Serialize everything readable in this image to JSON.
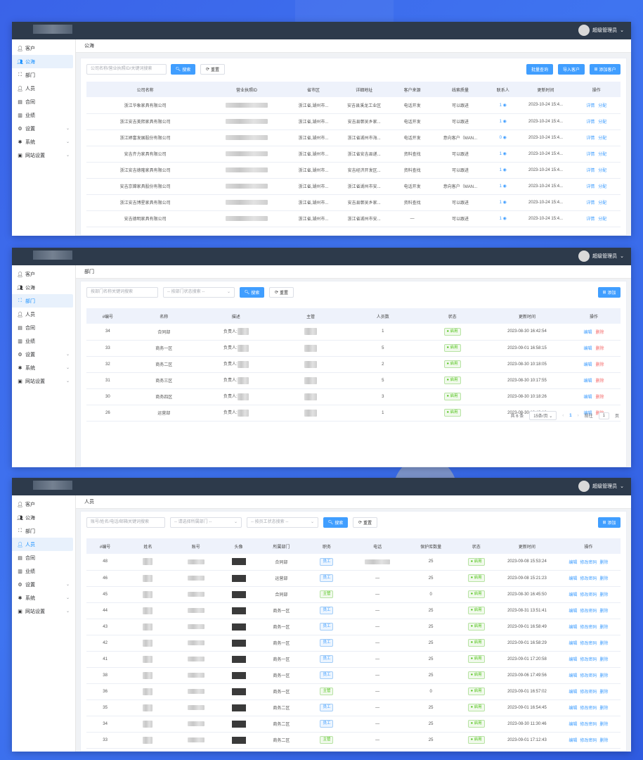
{
  "user": {
    "name": "超级管理员",
    "chevron": "chevron-down-icon"
  },
  "nav": [
    {
      "label": "客户",
      "icon": "user-icon",
      "has_children": false
    },
    {
      "label": "公海",
      "icon": "users-icon",
      "has_children": false
    },
    {
      "label": "部门",
      "icon": "org-icon",
      "has_children": false
    },
    {
      "label": "人员",
      "icon": "user-icon",
      "has_children": false
    },
    {
      "label": "合同",
      "icon": "document-icon",
      "has_children": false
    },
    {
      "label": "业绩",
      "icon": "chart-icon",
      "has_children": false
    },
    {
      "label": "设置",
      "icon": "gear-icon",
      "has_children": true
    },
    {
      "label": "系统",
      "icon": "system-icon",
      "has_children": true
    },
    {
      "label": "网站设置",
      "icon": "website-icon",
      "has_children": true
    }
  ],
  "colors": {
    "topbar": "#2d3a4b",
    "primary": "#409eff",
    "success": "#52c41a",
    "danger": "#f56c6c",
    "header_row": "#eef2fb"
  },
  "screen1": {
    "breadcrumb": "公海",
    "active_nav": "公海",
    "search_placeholder": "公司名称/营业执照ID/关键词搜索",
    "search_label": "搜索",
    "reset_label": "重置",
    "buttons": [
      "批量查询",
      "导入客户",
      "添加客户"
    ],
    "columns": [
      "公司名称",
      "营业执照ID",
      "省市区",
      "详细地址",
      "客户来源",
      "线索质量",
      "联系人",
      "更新时间",
      "操作"
    ],
    "rows": [
      {
        "company": "浙江华象家具有限公司",
        "region": "浙江省,湖州市...",
        "address": "安吉县溪龙工业区",
        "source": "电话开发",
        "quality": "可以跟进",
        "contacts": "1",
        "updated": "2023-10-24 15:4..."
      },
      {
        "company": "浙江安吉美熙家具有限公司",
        "region": "浙江省,湖州市...",
        "address": "安吉县鄣吴乡家...",
        "source": "电话开发",
        "quality": "可以跟进",
        "contacts": "1",
        "updated": "2023-10-24 15:4..."
      },
      {
        "company": "浙江婷富发展股份有限公司",
        "region": "浙江省,湖州市...",
        "address": "浙江省湖州市海...",
        "source": "电话开发",
        "quality": "意向客户（MAN...",
        "contacts": "0",
        "updated": "2023-10-24 15:4..."
      },
      {
        "company": "安吉齐力家具有限公司",
        "region": "浙江省,湖州市...",
        "address": "浙江省安吉县递...",
        "source": "资料查找",
        "quality": "可以跟进",
        "contacts": "1",
        "updated": "2023-10-24 15:4..."
      },
      {
        "company": "浙江安吉德隆家具有限公司",
        "region": "浙江省,湖州市...",
        "address": "安吉经济开发区...",
        "source": "资料查找",
        "quality": "可以跟进",
        "contacts": "1",
        "updated": "2023-10-24 15:4..."
      },
      {
        "company": "安吉京嫦家具股份有限公司",
        "region": "浙江省,湖州市...",
        "address": "浙江省湖州市安...",
        "source": "电话开发",
        "quality": "意向客户（MAN...",
        "contacts": "1",
        "updated": "2023-10-24 15:4..."
      },
      {
        "company": "浙江安吉博星家具有限公司",
        "region": "浙江省,湖州市...",
        "address": "安吉县鄣吴乡家...",
        "source": "资料查找",
        "quality": "可以跟进",
        "contacts": "1",
        "updated": "2023-10-24 15:4..."
      },
      {
        "company": "安吉德明家具有限公司",
        "region": "浙江省,湖州市...",
        "address": "浙江省湖州市安...",
        "source": "—",
        "quality": "可以跟进",
        "contacts": "1",
        "updated": "2023-10-24 15:4..."
      }
    ],
    "actions": [
      "详情",
      "分配"
    ]
  },
  "screen2": {
    "breadcrumb": "部门",
    "active_nav": "部门",
    "search_placeholder": "按部门名称关键词搜索",
    "status_placeholder": "-- 按部门状态搜索 --",
    "search_label": "搜索",
    "reset_label": "重置",
    "add_label": "添加",
    "columns": [
      "#编号",
      "名称",
      "描述",
      "主管",
      "人员数",
      "状态",
      "更新时间",
      "操作"
    ],
    "desc_prefix": "负责人:",
    "rows": [
      {
        "id": "34",
        "name": "合同部",
        "count": "1",
        "status": "启用",
        "updated": "2023-08-30 16:42:54"
      },
      {
        "id": "33",
        "name": "商务一区",
        "count": "5",
        "status": "启用",
        "updated": "2023-09-01 16:58:15"
      },
      {
        "id": "32",
        "name": "商务二区",
        "count": "2",
        "status": "启用",
        "updated": "2023-08-30 10:18:05"
      },
      {
        "id": "31",
        "name": "商务三区",
        "count": "5",
        "status": "启用",
        "updated": "2023-08-30 10:17:55"
      },
      {
        "id": "30",
        "name": "商务四区",
        "count": "3",
        "status": "启用",
        "updated": "2023-08-30 10:18:26"
      },
      {
        "id": "26",
        "name": "运营部",
        "count": "1",
        "status": "启用",
        "updated": "2023-08-30 16:43:18"
      }
    ],
    "actions": [
      "编辑",
      "删除"
    ],
    "pager": {
      "total": "共 6 条",
      "size": "15条/页",
      "page": "1",
      "goto": "前往",
      "goto_value": "1",
      "suffix": "页"
    }
  },
  "screen3": {
    "breadcrumb": "人员",
    "active_nav": "人员",
    "search_placeholder": "账号/姓名/电话/邮箱关键词搜索",
    "dept_placeholder": "-- 请选择所属部门 --",
    "status_placeholder": "-- 按员工状态搜索 --",
    "search_label": "搜索",
    "reset_label": "重置",
    "add_label": "添加",
    "columns": [
      "#编号",
      "姓名",
      "账号",
      "头像",
      "所属部门",
      "职务",
      "电话",
      "保护库数量",
      "状态",
      "更新时间",
      "操作"
    ],
    "rows": [
      {
        "id": "48",
        "dept": "合同部",
        "role": "员工",
        "role_type": "blue",
        "phone": "blur",
        "quota": "25",
        "status": "启用",
        "updated": "2023-09-08 15:53:24"
      },
      {
        "id": "46",
        "dept": "运营部",
        "role": "员工",
        "role_type": "blue",
        "phone": "—",
        "quota": "25",
        "status": "启用",
        "updated": "2023-09-08 15:21:23"
      },
      {
        "id": "45",
        "dept": "合同部",
        "role": "主管",
        "role_type": "green",
        "phone": "—",
        "quota": "0",
        "status": "启用",
        "updated": "2023-08-30 16:45:50"
      },
      {
        "id": "44",
        "dept": "商务一区",
        "role": "员工",
        "role_type": "blue",
        "phone": "—",
        "quota": "25",
        "status": "启用",
        "updated": "2023-08-31 13:51:41"
      },
      {
        "id": "43",
        "dept": "商务一区",
        "role": "员工",
        "role_type": "blue",
        "phone": "—",
        "quota": "25",
        "status": "启用",
        "updated": "2023-09-01 16:58:49"
      },
      {
        "id": "42",
        "dept": "商务一区",
        "role": "员工",
        "role_type": "blue",
        "phone": "—",
        "quota": "25",
        "status": "启用",
        "updated": "2023-09-01 16:58:29"
      },
      {
        "id": "41",
        "dept": "商务一区",
        "role": "员工",
        "role_type": "blue",
        "phone": "—",
        "quota": "25",
        "status": "启用",
        "updated": "2023-09-01 17:20:58"
      },
      {
        "id": "38",
        "dept": "商务一区",
        "role": "员工",
        "role_type": "blue",
        "phone": "—",
        "quota": "25",
        "status": "启用",
        "updated": "2023-09-06 17:49:56"
      },
      {
        "id": "36",
        "dept": "商务一区",
        "role": "主管",
        "role_type": "green",
        "phone": "—",
        "quota": "0",
        "status": "启用",
        "updated": "2023-09-01 16:57:02"
      },
      {
        "id": "35",
        "dept": "商务二区",
        "role": "员工",
        "role_type": "blue",
        "phone": "—",
        "quota": "25",
        "status": "启用",
        "updated": "2023-09-01 16:54:45"
      },
      {
        "id": "34",
        "dept": "商务二区",
        "role": "员工",
        "role_type": "blue",
        "phone": "—",
        "quota": "25",
        "status": "启用",
        "updated": "2023-08-30 11:30:46"
      },
      {
        "id": "33",
        "dept": "商务二区",
        "role": "主管",
        "role_type": "green",
        "phone": "—",
        "quota": "25",
        "status": "启用",
        "updated": "2023-09-01 17:12:43"
      }
    ],
    "actions": [
      "编辑",
      "修改密码",
      "删除"
    ]
  }
}
